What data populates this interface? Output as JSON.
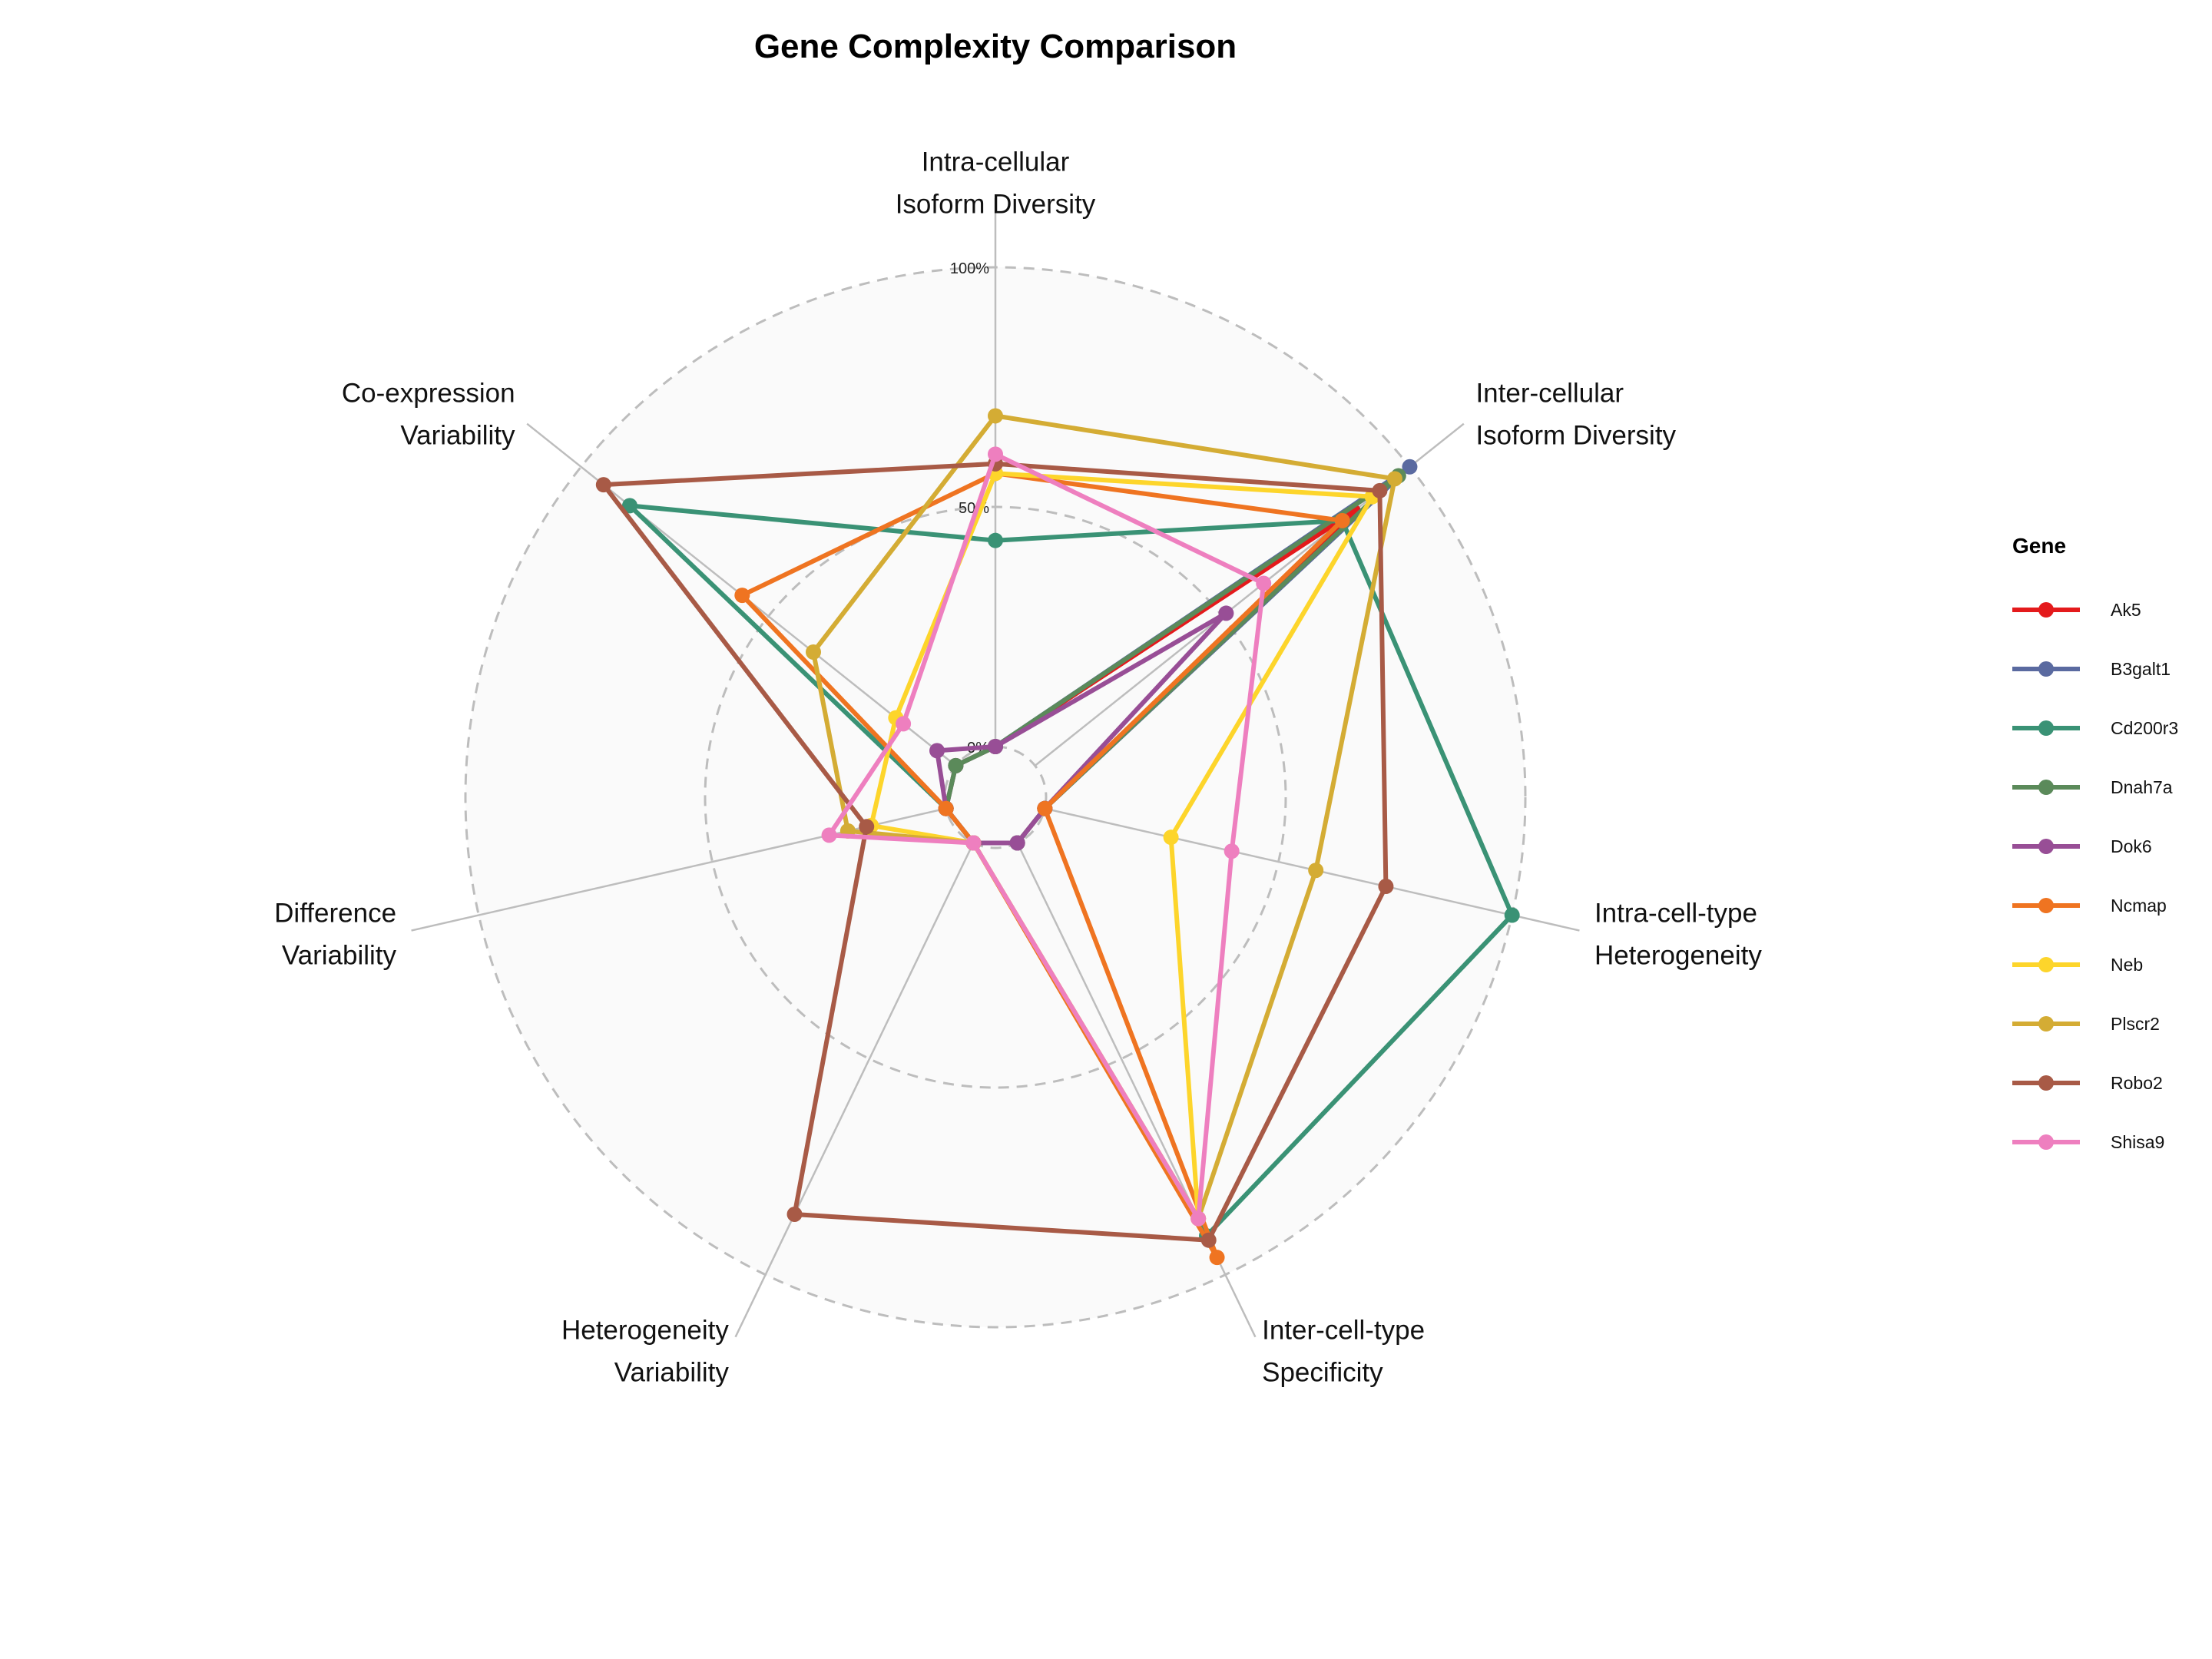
{
  "chart_data": {
    "type": "radar",
    "title": "Gene Complexity Comparison",
    "axes": [
      [
        "Intra-cellular",
        "Isoform Diversity"
      ],
      [
        "Inter-cellular",
        "Isoform Diversity"
      ],
      [
        "Intra-cell-type",
        "Heterogeneity"
      ],
      [
        "Inter-cell-type",
        "Specificity"
      ],
      [
        "Heterogeneity",
        "Variability"
      ],
      [
        "Difference",
        "Variability"
      ],
      [
        "Co-expression",
        "Variability"
      ]
    ],
    "radial_ticks": [
      "0%",
      "50%",
      "100%"
    ],
    "range": [
      0,
      100
    ],
    "grid": true,
    "legend_title": "Gene",
    "legend_position": "right",
    "series": [
      {
        "name": "Ak5",
        "color": "#e41a1c",
        "values": [
          0,
          85,
          0,
          0,
          0,
          0,
          0
        ]
      },
      {
        "name": "B3galt1",
        "color": "#5a6aa0",
        "values": [
          0,
          100,
          0,
          0,
          0,
          0,
          0
        ]
      },
      {
        "name": "Cd200r3",
        "color": "#3a9275",
        "values": [
          43,
          82,
          100,
          91,
          0,
          0,
          87
        ]
      },
      {
        "name": "Dnah7a",
        "color": "#5b8a5a",
        "values": [
          0,
          97,
          0,
          0,
          0,
          0,
          0
        ]
      },
      {
        "name": "Dok6",
        "color": "#984e96",
        "values": [
          0,
          51,
          0,
          0,
          0,
          0,
          5
        ]
      },
      {
        "name": "Ncmap",
        "color": "#ef7421",
        "values": [
          57,
          82,
          0,
          96,
          0,
          0,
          57
        ]
      },
      {
        "name": "Neb",
        "color": "#fdd52b",
        "values": [
          57,
          90,
          27,
          87,
          0,
          16,
          16
        ]
      },
      {
        "name": "Plscr2",
        "color": "#d4ac34",
        "values": [
          69,
          96,
          58,
          87,
          0,
          21,
          38
        ]
      },
      {
        "name": "Robo2",
        "color": "#a85a46",
        "values": [
          59,
          92,
          73,
          92,
          86,
          17,
          94
        ]
      },
      {
        "name": "Shisa9",
        "color": "#ee7fbf",
        "values": [
          61,
          61,
          40,
          87,
          0,
          25,
          14
        ]
      }
    ]
  }
}
